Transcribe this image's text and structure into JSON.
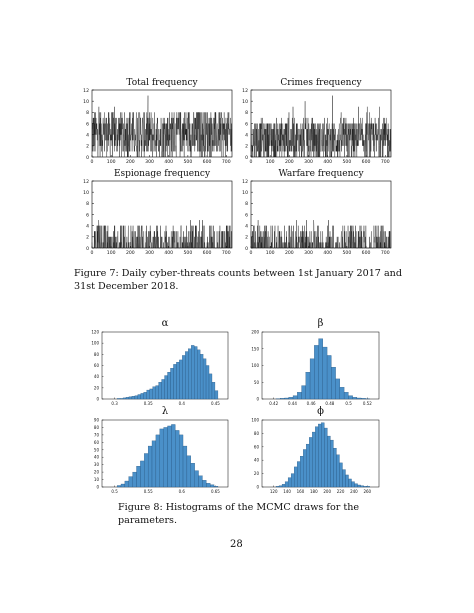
{
  "figure7": {
    "caption": "Figure 7: Daily cyber-threats counts between 1st January 2017 and 31st December 2018.",
    "panels": [
      {
        "title": "Total frequency",
        "level": 4.2,
        "spread": 2.6,
        "sparse": false
      },
      {
        "title": "Crimes frequency",
        "level": 3.2,
        "spread": 2.2,
        "sparse": false
      },
      {
        "title": "Espionage frequency",
        "level": 0.5,
        "spread": 0.8,
        "sparse": true
      },
      {
        "title": "Warfare frequency",
        "level": 0.2,
        "spread": 0.6,
        "sparse": true
      }
    ],
    "xticks": [
      "0",
      "100",
      "200",
      "300",
      "400",
      "500",
      "600",
      "700"
    ],
    "yticks": [
      "0",
      "2",
      "4",
      "6",
      "8",
      "10",
      "12"
    ],
    "bar_color": "#111111"
  },
  "figure8": {
    "caption": "Figure 8: Histograms of the MCMC draws for the parameters.",
    "panels": [
      {
        "symbol": "α",
        "xticks": [
          "0.3",
          "0.35",
          "0.4",
          "0.45"
        ],
        "yticks": [
          "0",
          "20",
          "40",
          "60",
          "80",
          "100",
          "120"
        ],
        "ymax": 120,
        "counts": [
          1,
          1,
          2,
          3,
          4,
          5,
          6,
          8,
          10,
          12,
          16,
          18,
          22,
          24,
          30,
          35,
          42,
          48,
          55,
          62,
          66,
          70,
          78,
          85,
          90,
          96,
          94,
          88,
          80,
          72,
          60,
          45,
          30,
          15
        ]
      },
      {
        "symbol": "β",
        "xticks": [
          "0.42",
          "0.44",
          "0.46",
          "0.48",
          "0.5",
          "0.52"
        ],
        "yticks": [
          "0",
          "50",
          "100",
          "150",
          "200"
        ],
        "ymax": 200,
        "counts": [
          1,
          2,
          3,
          5,
          10,
          20,
          40,
          80,
          120,
          160,
          180,
          155,
          130,
          95,
          60,
          35,
          20,
          10,
          5,
          3,
          2,
          1
        ]
      },
      {
        "symbol": "λ",
        "xticks": [
          "0.5",
          "0.55",
          "0.6",
          "0.65"
        ],
        "yticks": [
          "0",
          "10",
          "20",
          "30",
          "40",
          "50",
          "60",
          "70",
          "80",
          "90"
        ],
        "ymax": 90,
        "counts": [
          2,
          4,
          8,
          14,
          20,
          28,
          35,
          45,
          55,
          62,
          70,
          78,
          80,
          82,
          84,
          76,
          70,
          55,
          42,
          32,
          22,
          15,
          9,
          5,
          3,
          1
        ]
      },
      {
        "symbol": "ϕ",
        "xticks": [
          "120",
          "140",
          "160",
          "180",
          "200",
          "220",
          "240",
          "260"
        ],
        "yticks": [
          "0",
          "20",
          "40",
          "60",
          "80",
          "100"
        ],
        "ymax": 100,
        "counts": [
          1,
          2,
          4,
          8,
          14,
          20,
          30,
          38,
          46,
          56,
          64,
          74,
          82,
          90,
          94,
          96,
          88,
          76,
          70,
          58,
          48,
          36,
          26,
          18,
          12,
          8,
          5,
          3,
          2,
          1,
          1
        ]
      }
    ],
    "bar_fill": "#4a90c9",
    "bar_stroke": "#1f4e79"
  },
  "page_number": "28"
}
